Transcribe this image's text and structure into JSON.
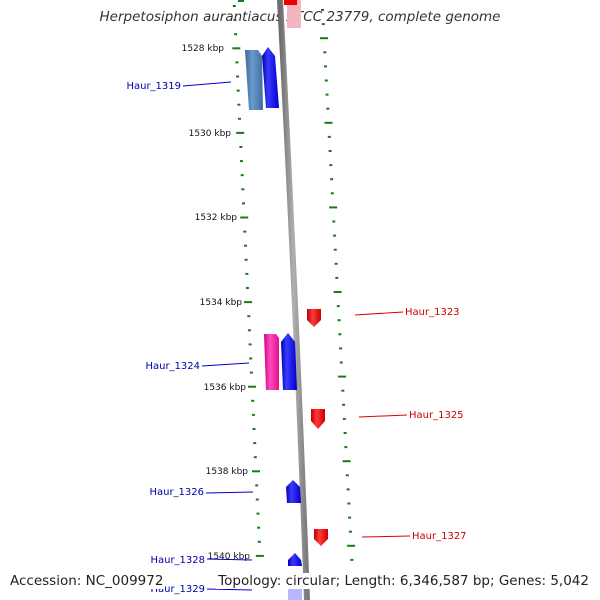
{
  "title": "Herpetosiphon aurantiacus ATCC 23779, complete genome",
  "footer": {
    "accession": "Accession: NC_009972",
    "summary": "Topology: circular; Length: 6,346,587 bp; Genes: 5,042"
  },
  "ruler": {
    "unit": "kbp",
    "ticks": [
      "1528 kbp",
      "1530 kbp",
      "1532 kbp",
      "1534 kbp",
      "1536 kbp",
      "1538 kbp",
      "1540 kbp"
    ]
  },
  "genes": [
    {
      "name": "Haur_1319",
      "strand": "forward",
      "color": "#0000ee"
    },
    {
      "name": "Haur_1323",
      "strand": "reverse",
      "color": "#ee0000"
    },
    {
      "name": "Haur_1324",
      "strand": "forward",
      "color": "#0000ee"
    },
    {
      "name": "Haur_1325",
      "strand": "reverse",
      "color": "#ee0000"
    },
    {
      "name": "Haur_1326",
      "strand": "forward",
      "color": "#0000ee"
    },
    {
      "name": "Haur_1327",
      "strand": "reverse",
      "color": "#ee0000"
    },
    {
      "name": "Haur_1328",
      "strand": "forward",
      "color": "#0000ee"
    },
    {
      "name": "Haur_1329",
      "strand": "forward",
      "color": "#0000ee"
    }
  ],
  "colors": {
    "forward_gene": "#0000ee",
    "reverse_gene": "#ee0000",
    "cog_blue": "#4f80b0",
    "cog_pink": "#ee1199",
    "ruler_ticks": "#1a7a1a",
    "backbone": "#888888"
  }
}
